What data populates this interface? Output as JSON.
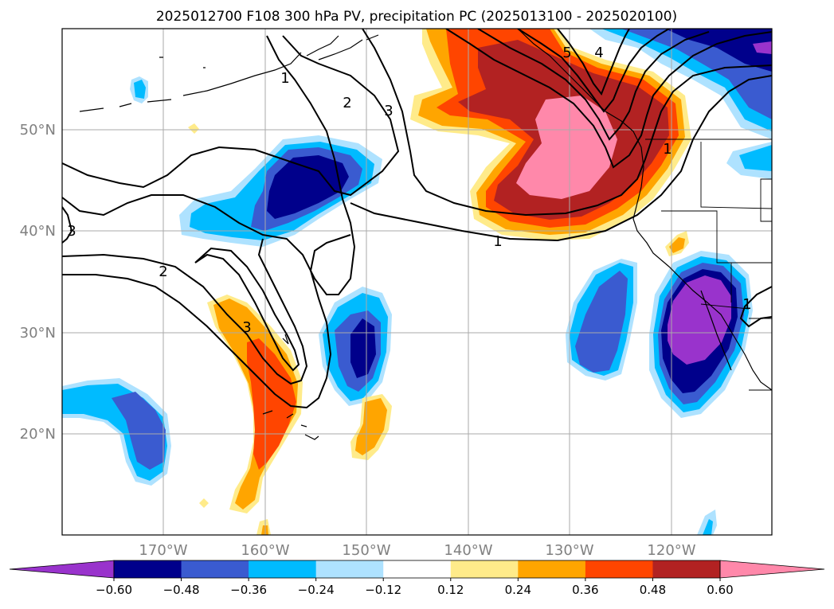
{
  "title": "2025012700 F108 300 hPa PV, precipitation PC (2025013100 - 2025020100)",
  "map": {
    "lon_labels": [
      "170°W",
      "160°W",
      "150°W",
      "140°W",
      "130°W",
      "120°W"
    ],
    "lat_labels": [
      "50°N",
      "40°N",
      "30°N",
      "20°N"
    ],
    "pv_contour_labels": [
      "1",
      "2",
      "3",
      "5",
      "4",
      "1",
      "2",
      "3",
      "3",
      "1",
      "1"
    ]
  },
  "colorbar": {
    "ticks": [
      "−0.60",
      "−0.48",
      "−0.36",
      "−0.24",
      "−0.12",
      "0.12",
      "0.24",
      "0.36",
      "0.48",
      "0.60"
    ],
    "colors": [
      "#9933cc",
      "#00008b",
      "#3a5bd0",
      "#00bbff",
      "#aee2ff",
      "#ffffff",
      "#ffeb8a",
      "#ffa500",
      "#ff4500",
      "#b22222",
      "#ff88aa"
    ]
  }
}
